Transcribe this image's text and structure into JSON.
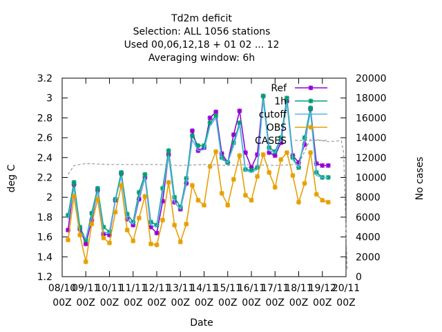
{
  "chart_data": {
    "type": "line",
    "title_lines": [
      "Td2m deficit",
      "Selection: ALL   1056 stations",
      "Used  00,06,12,18 + 01 02 ... 12",
      "Averaging window:  6h"
    ],
    "xlabel": "Date",
    "ylabel": "deg C",
    "y2label": "No cases",
    "x_ticks": [
      {
        "top": "08/10",
        "bottom": "00Z"
      },
      {
        "top": "09/11",
        "bottom": "00Z"
      },
      {
        "top": "10/11",
        "bottom": "00Z"
      },
      {
        "top": "11/11",
        "bottom": "00Z"
      },
      {
        "top": "12/11",
        "bottom": "00Z"
      },
      {
        "top": "13/11",
        "bottom": "00Z"
      },
      {
        "top": "14/11",
        "bottom": "00Z"
      },
      {
        "top": "15/11",
        "bottom": "00Z"
      },
      {
        "top": "16/11",
        "bottom": "00Z"
      },
      {
        "top": "17/11",
        "bottom": "00Z"
      },
      {
        "top": "18/11",
        "bottom": "00Z"
      },
      {
        "top": "19/12",
        "bottom": "00Z"
      },
      {
        "top": "20/11",
        "bottom": "00Z"
      }
    ],
    "x_step_days": 0.25,
    "ylim": [
      1.2,
      3.2
    ],
    "y_ticks": [
      "1.2",
      "1.4",
      "1.6",
      "1.8",
      "2",
      "2.2",
      "2.4",
      "2.6",
      "2.8",
      "3",
      "3.2"
    ],
    "y2lim": [
      0,
      20000
    ],
    "y2_ticks": [
      "0",
      "2000",
      "4000",
      "6000",
      "8000",
      "10000",
      "12000",
      "14000",
      "16000",
      "18000",
      "20000"
    ],
    "legend_position": "top-right",
    "series": [
      {
        "name": "Ref",
        "color": "#9400d3",
        "marker": "star",
        "x_start_day": 0.25,
        "values": [
          1.67,
          2.13,
          1.68,
          1.53,
          1.77,
          2.07,
          1.63,
          1.62,
          1.97,
          2.24,
          1.78,
          1.72,
          1.98,
          2.2,
          1.7,
          1.64,
          1.96,
          2.43,
          1.95,
          1.88,
          2.14,
          2.67,
          2.47,
          2.5,
          2.8,
          2.86,
          2.44,
          2.35,
          2.63,
          2.87,
          2.45,
          2.3,
          2.43,
          3.02,
          2.45,
          2.42,
          2.55,
          2.97,
          2.42,
          2.35,
          2.53,
          2.89,
          2.34,
          2.32,
          2.32
        ]
      },
      {
        "name": "1h",
        "color": "#009e73",
        "marker": "star",
        "x_start_day": 0.25,
        "values": [
          1.82,
          2.15,
          1.7,
          1.57,
          1.84,
          2.09,
          1.7,
          1.65,
          1.98,
          2.25,
          1.83,
          1.75,
          2.05,
          2.23,
          1.75,
          1.72,
          2.09,
          2.47,
          2.0,
          1.9,
          2.19,
          2.62,
          2.52,
          2.52,
          2.75,
          2.82,
          2.4,
          2.35,
          2.55,
          2.75,
          2.28,
          2.27,
          2.3,
          3.02,
          2.5,
          2.46,
          2.6,
          3.0,
          2.4,
          2.3,
          2.6,
          2.9,
          2.25,
          2.2,
          2.2
        ]
      },
      {
        "name": "cutoff",
        "color": "#56b4e9",
        "marker": "none",
        "x_start_day": 0.25,
        "values": [
          1.78,
          2.1,
          1.65,
          1.58,
          1.8,
          2.06,
          1.65,
          1.64,
          1.97,
          2.21,
          1.78,
          1.73,
          2.0,
          2.2,
          1.72,
          1.7,
          2.05,
          2.42,
          1.95,
          1.88,
          2.15,
          2.58,
          2.47,
          2.48,
          2.72,
          2.8,
          2.38,
          2.35,
          2.52,
          2.73,
          2.27,
          2.25,
          2.28,
          2.98,
          2.47,
          2.45,
          2.58,
          2.95,
          2.38,
          2.3,
          2.57,
          2.86,
          2.22,
          2.2,
          2.2
        ]
      },
      {
        "name": "OBS",
        "color": "#e69f00",
        "marker": "star",
        "x_start_day": 0.25,
        "values": [
          1.57,
          2.01,
          1.62,
          1.35,
          1.73,
          1.98,
          1.59,
          1.54,
          1.85,
          2.12,
          1.67,
          1.56,
          1.79,
          2.01,
          1.53,
          1.52,
          1.77,
          2.15,
          1.72,
          1.55,
          1.73,
          2.12,
          1.97,
          1.92,
          2.31,
          2.46,
          2.04,
          1.92,
          2.18,
          2.42,
          2.02,
          1.97,
          2.21,
          2.43,
          2.25,
          2.1,
          2.38,
          2.45,
          2.22,
          1.95,
          2.14,
          2.45,
          2.03,
          1.97,
          1.95
        ]
      },
      {
        "name": "CASES",
        "color": "#999999",
        "marker": "none",
        "dashed": true,
        "axis": "y2",
        "points": [
          [
            0.25,
            10300
          ],
          [
            0.5,
            11200
          ],
          [
            1,
            11400
          ],
          [
            2,
            11300
          ],
          [
            3,
            11300
          ],
          [
            4,
            11300
          ],
          [
            5,
            11200
          ],
          [
            6,
            11300
          ],
          [
            7,
            11200
          ],
          [
            8,
            11300
          ],
          [
            9,
            11200
          ],
          [
            10,
            11300
          ],
          [
            10.5,
            13900
          ],
          [
            11,
            13700
          ],
          [
            11.25,
            13600
          ],
          [
            11.8,
            13700
          ],
          [
            11.9,
            12500
          ],
          [
            12.05,
            700
          ]
        ]
      }
    ]
  }
}
